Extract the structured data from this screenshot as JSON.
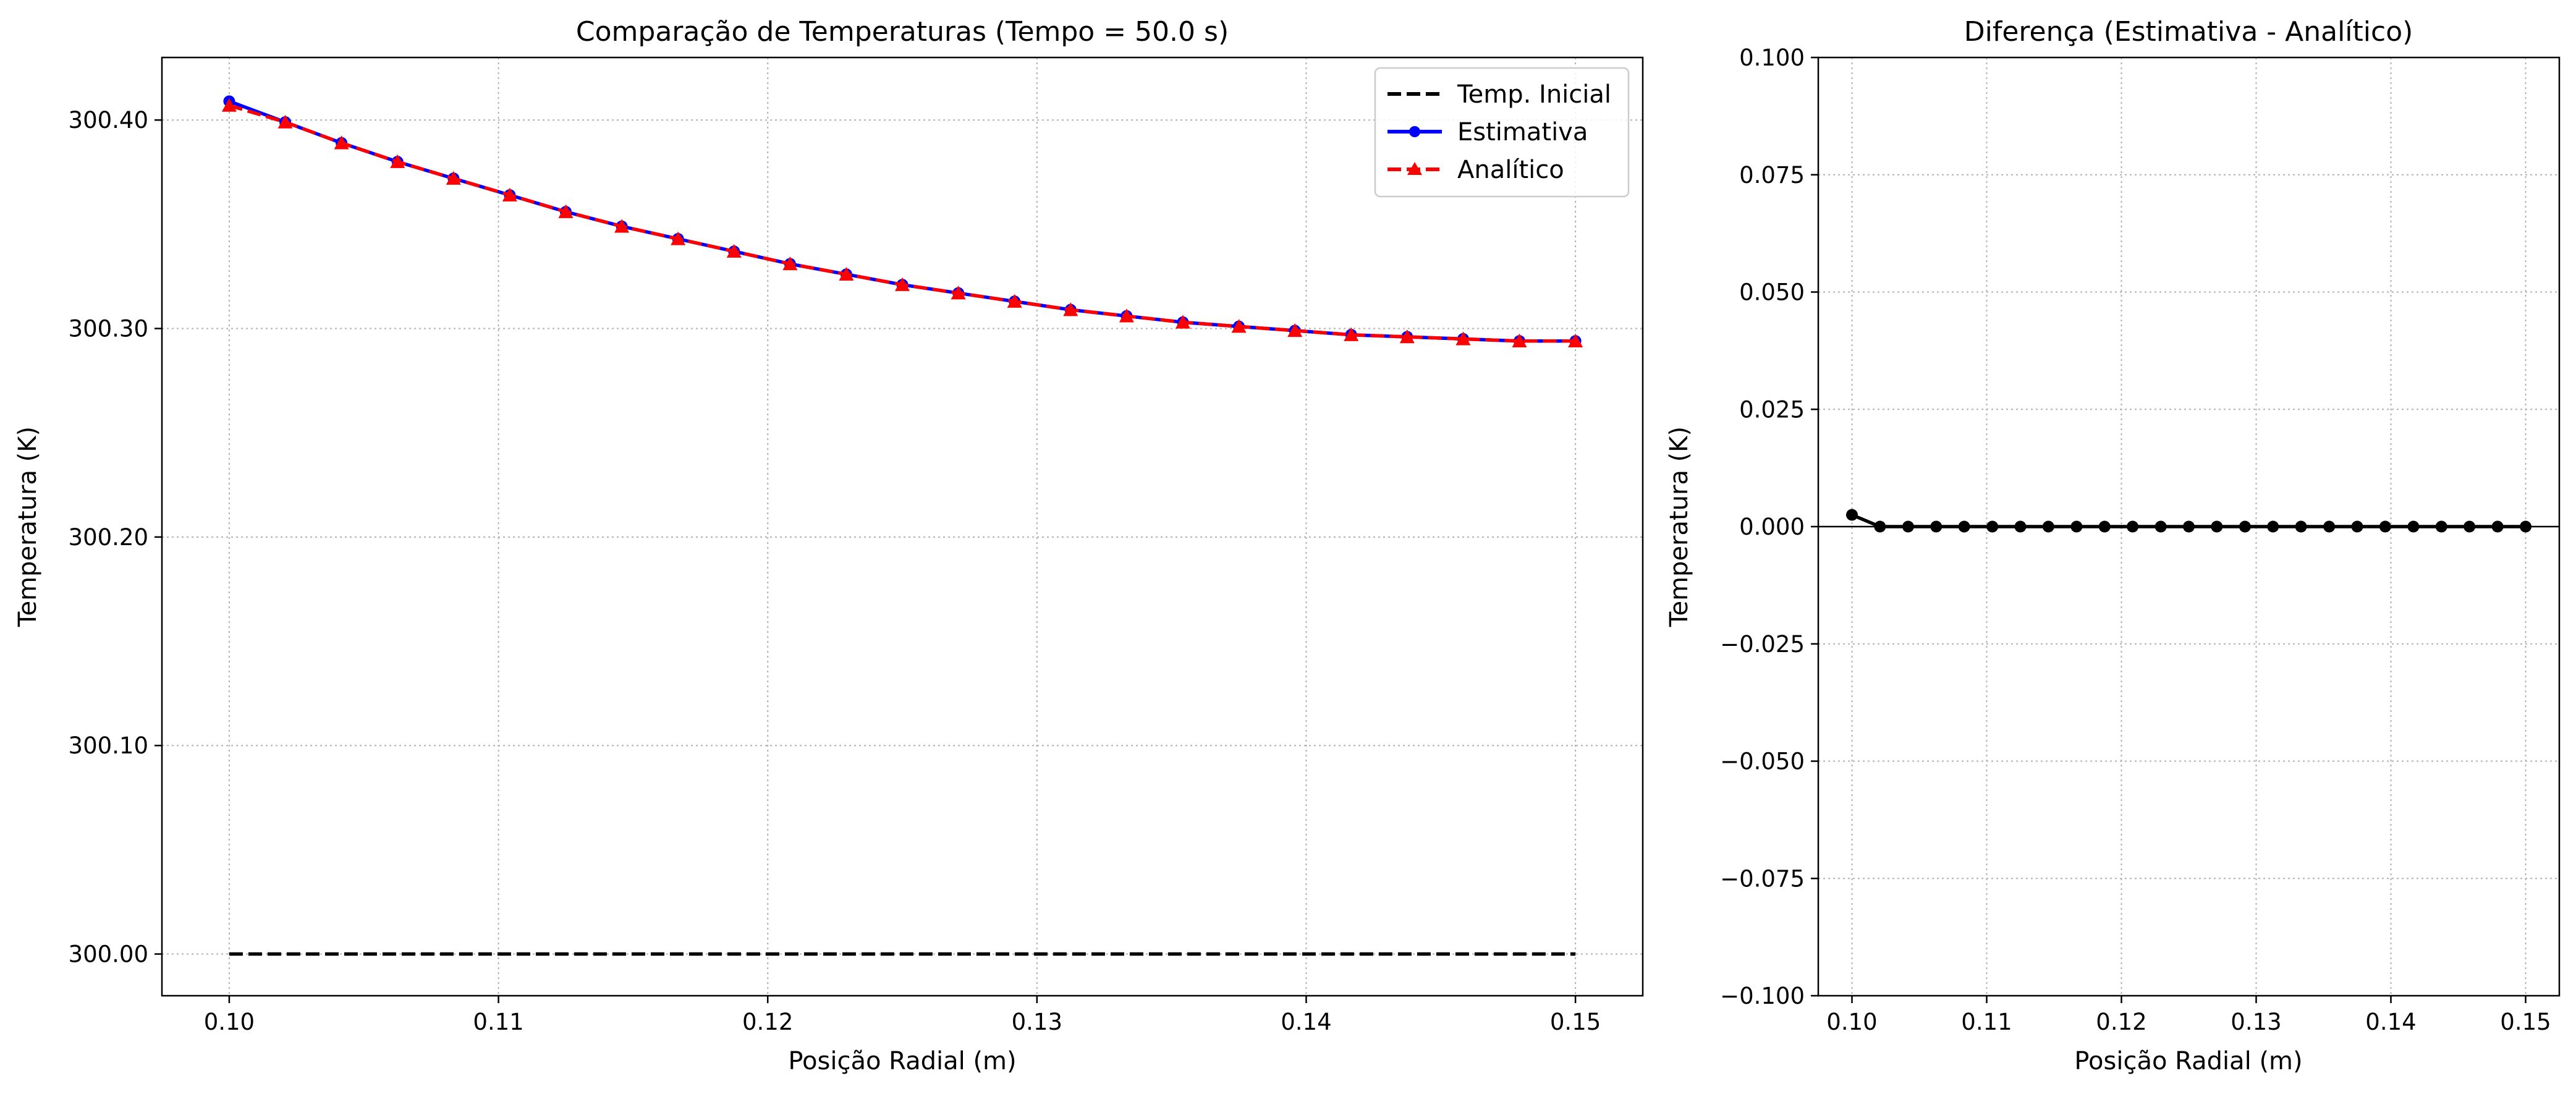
{
  "chart_data": [
    {
      "type": "line",
      "title": "Comparação de Temperaturas (Tempo = 50.0 s)",
      "xlabel": "Posição Radial (m)",
      "ylabel": "Temperatura (K)",
      "xlim": [
        0.0975,
        0.1525
      ],
      "ylim": [
        299.98,
        300.43
      ],
      "xticks": [
        0.1,
        0.11,
        0.12,
        0.13,
        0.14,
        0.15
      ],
      "xtick_labels": [
        "0.10",
        "0.11",
        "0.12",
        "0.13",
        "0.14",
        "0.15"
      ],
      "yticks": [
        300.0,
        300.1,
        300.2,
        300.3,
        300.4
      ],
      "ytick_labels": [
        "300.00",
        "300.10",
        "300.20",
        "300.30",
        "300.40"
      ],
      "grid": true,
      "legend_position": "top-right",
      "x": [
        0.1,
        0.10208,
        0.10417,
        0.10625,
        0.10833,
        0.11042,
        0.1125,
        0.11458,
        0.11667,
        0.11875,
        0.12083,
        0.12292,
        0.125,
        0.12708,
        0.12917,
        0.13125,
        0.13333,
        0.13542,
        0.1375,
        0.13958,
        0.14167,
        0.14375,
        0.14583,
        0.14792,
        0.15
      ],
      "series": [
        {
          "name": "Temp. Inicial",
          "color": "#000000",
          "style": "dashed",
          "marker": "none",
          "values": [
            300.0,
            300.0,
            300.0,
            300.0,
            300.0,
            300.0,
            300.0,
            300.0,
            300.0,
            300.0,
            300.0,
            300.0,
            300.0,
            300.0,
            300.0,
            300.0,
            300.0,
            300.0,
            300.0,
            300.0,
            300.0,
            300.0,
            300.0,
            300.0,
            300.0
          ]
        },
        {
          "name": "Estimativa",
          "color": "#0000ff",
          "style": "solid",
          "marker": "circle",
          "values": [
            300.409,
            300.399,
            300.389,
            300.38,
            300.372,
            300.364,
            300.356,
            300.349,
            300.343,
            300.337,
            300.331,
            300.326,
            300.321,
            300.317,
            300.313,
            300.309,
            300.306,
            300.303,
            300.301,
            300.299,
            300.297,
            300.296,
            300.295,
            300.294,
            300.294
          ]
        },
        {
          "name": "Analítico",
          "color": "#ff0000",
          "style": "dashed",
          "marker": "triangle",
          "values": [
            300.407,
            300.399,
            300.389,
            300.38,
            300.372,
            300.364,
            300.356,
            300.349,
            300.343,
            300.337,
            300.331,
            300.326,
            300.321,
            300.317,
            300.313,
            300.309,
            300.306,
            300.303,
            300.301,
            300.299,
            300.297,
            300.296,
            300.295,
            300.294,
            300.294
          ]
        }
      ]
    },
    {
      "type": "line",
      "title": "Diferença (Estimativa - Analítico)",
      "xlabel": "Posição Radial (m)",
      "ylabel": "Temperatura (K)",
      "xlim": [
        0.0975,
        0.1525
      ],
      "ylim": [
        -0.1,
        0.1
      ],
      "xticks": [
        0.1,
        0.11,
        0.12,
        0.13,
        0.14,
        0.15
      ],
      "xtick_labels": [
        "0.10",
        "0.11",
        "0.12",
        "0.13",
        "0.14",
        "0.15"
      ],
      "yticks": [
        -0.1,
        -0.075,
        -0.05,
        -0.025,
        0.0,
        0.025,
        0.05,
        0.075,
        0.1
      ],
      "ytick_labels": [
        "−0.100",
        "−0.075",
        "−0.050",
        "−0.025",
        "0.000",
        "0.025",
        "0.050",
        "0.075",
        "0.100"
      ],
      "grid": true,
      "zero_line": true,
      "x": [
        0.1,
        0.10208,
        0.10417,
        0.10625,
        0.10833,
        0.11042,
        0.1125,
        0.11458,
        0.11667,
        0.11875,
        0.12083,
        0.12292,
        0.125,
        0.12708,
        0.12917,
        0.13125,
        0.13333,
        0.13542,
        0.1375,
        0.13958,
        0.14167,
        0.14375,
        0.14583,
        0.14792,
        0.15
      ],
      "series": [
        {
          "color": "#000000",
          "style": "solid",
          "marker": "circle",
          "values": [
            0.0025,
            0.0,
            0.0,
            0.0,
            0.0,
            0.0,
            0.0,
            0.0,
            0.0,
            0.0,
            0.0,
            0.0,
            0.0,
            0.0,
            0.0,
            0.0,
            0.0,
            0.0,
            0.0,
            0.0,
            0.0,
            0.0,
            0.0,
            0.0,
            0.0
          ]
        }
      ]
    }
  ]
}
